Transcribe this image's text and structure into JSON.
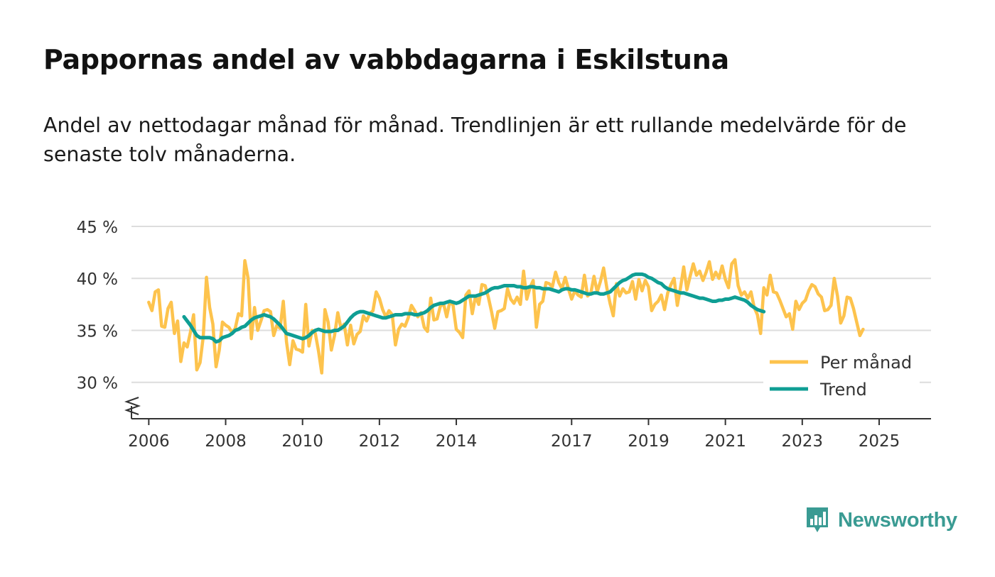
{
  "title": "Pappornas andel av vabbdagarna i Eskilstuna",
  "subtitle": "Andel av nettodagar månad för månad. Trendlinjen är ett rullande medelvärde för de senaste tolv månaderna.",
  "brand": {
    "name": "Newsworthy",
    "icon": "newsworthy-logo-icon",
    "color": "#3a9b93"
  },
  "colors": {
    "monthly": "#fdc34d",
    "trend": "#0f9e94",
    "grid": "#dddddd",
    "axis": "#333333"
  },
  "chart_data": {
    "type": "line",
    "title": "Pappornas andel av vabbdagarna i Eskilstuna",
    "xlabel": "",
    "ylabel": "",
    "x_unit": "year (decimal)",
    "xlim": [
      2005.55,
      2026.35
    ],
    "ylim": [
      26.5,
      45
    ],
    "y_ticks": [
      30,
      35,
      40,
      45
    ],
    "y_tick_labels": [
      "30 %",
      "35 %",
      "40 %",
      "45 %"
    ],
    "x_ticks": [
      2006,
      2008,
      2010,
      2012,
      2014,
      2017,
      2019,
      2021,
      2023,
      2025
    ],
    "x_tick_labels": [
      "2006",
      "2008",
      "2010",
      "2012",
      "2014",
      "2017",
      "2019",
      "2021",
      "2023",
      "2025"
    ],
    "legend": {
      "position": "bottom-right",
      "entries": [
        "Per månad",
        "Trend"
      ]
    },
    "series": [
      {
        "name": "Per månad",
        "key": "monthly",
        "x_start": 2006.0,
        "x_step": 0.08333,
        "values": [
          37.7,
          36.9,
          38.7,
          38.9,
          35.4,
          35.3,
          37.1,
          37.7,
          34.7,
          35.9,
          32.0,
          33.8,
          33.4,
          34.8,
          36.5,
          31.2,
          31.9,
          34.4,
          40.1,
          37.2,
          35.6,
          31.5,
          33.1,
          35.8,
          35.5,
          35.3,
          34.8,
          35.2,
          36.6,
          36.4,
          41.7,
          40.0,
          34.2,
          37.2,
          35.0,
          35.9,
          36.9,
          37.0,
          36.8,
          34.5,
          35.5,
          35.2,
          37.8,
          33.9,
          31.7,
          34.0,
          33.2,
          33.1,
          32.9,
          37.5,
          33.5,
          35.0,
          34.7,
          33.0,
          30.9,
          37.0,
          35.8,
          33.1,
          34.5,
          36.7,
          35.2,
          35.6,
          33.6,
          35.5,
          33.7,
          34.6,
          34.9,
          36.4,
          35.9,
          36.6,
          36.9,
          38.7,
          38.1,
          37.0,
          36.3,
          36.9,
          36.5,
          33.6,
          35.1,
          35.6,
          35.4,
          36.2,
          37.4,
          36.9,
          36.3,
          36.7,
          35.3,
          34.9,
          38.1,
          36.0,
          36.1,
          37.3,
          37.6,
          36.3,
          37.8,
          37.4,
          35.1,
          34.8,
          34.3,
          38.4,
          38.8,
          36.6,
          38.3,
          37.5,
          39.4,
          39.3,
          38.2,
          36.8,
          35.2,
          36.8,
          36.9,
          37.1,
          39.0,
          38.0,
          37.6,
          38.2,
          37.5,
          40.7,
          38.0,
          39.1,
          39.8,
          35.3,
          37.5,
          37.8,
          39.6,
          39.5,
          39.2,
          40.6,
          39.6,
          39.0,
          40.1,
          39.0,
          38.0,
          38.8,
          38.4,
          38.2,
          40.3,
          38.3,
          38.6,
          40.2,
          38.7,
          39.7,
          41.0,
          39.1,
          37.6,
          36.4,
          39.5,
          38.3,
          39.0,
          38.6,
          38.7,
          39.7,
          38.0,
          39.9,
          38.8,
          39.8,
          39.2,
          36.9,
          37.5,
          37.8,
          38.4,
          37.0,
          38.6,
          39.4,
          40.0,
          37.4,
          39.1,
          41.1,
          38.9,
          40.2,
          41.4,
          40.3,
          40.7,
          39.8,
          40.6,
          41.6,
          39.9,
          40.6,
          40.0,
          41.2,
          39.9,
          39.1,
          41.4,
          41.8,
          39.3,
          38.4,
          38.7,
          38.1,
          38.7,
          37.2,
          36.5,
          34.7,
          39.1,
          38.4,
          40.3,
          38.7,
          38.6,
          37.9,
          37.1,
          36.3,
          36.6,
          35.1,
          37.8,
          37.0,
          37.6,
          37.9,
          38.8,
          39.4,
          39.2,
          38.5,
          38.2,
          36.9,
          37.0,
          37.4,
          40.0,
          38.3,
          35.7,
          36.4,
          38.2,
          38.1,
          37.1,
          35.8,
          34.5,
          35.1
        ]
      },
      {
        "name": "Trend",
        "key": "trend",
        "x_start": 2006.9167,
        "x_step": 0.08333,
        "values": [
          36.3,
          35.9,
          35.5,
          35.0,
          34.5,
          34.3,
          34.3,
          34.3,
          34.3,
          34.2,
          33.9,
          34.0,
          34.3,
          34.4,
          34.5,
          34.7,
          35.0,
          35.1,
          35.3,
          35.4,
          35.7,
          36.0,
          36.2,
          36.3,
          36.4,
          36.5,
          36.4,
          36.3,
          36.1,
          35.8,
          35.5,
          35.1,
          34.7,
          34.6,
          34.5,
          34.4,
          34.3,
          34.2,
          34.3,
          34.5,
          34.8,
          35.0,
          35.1,
          35.0,
          34.9,
          34.9,
          34.9,
          35.0,
          35.0,
          35.2,
          35.4,
          35.8,
          36.2,
          36.5,
          36.7,
          36.8,
          36.8,
          36.7,
          36.6,
          36.5,
          36.4,
          36.3,
          36.2,
          36.2,
          36.3,
          36.4,
          36.5,
          36.5,
          36.5,
          36.6,
          36.6,
          36.6,
          36.5,
          36.5,
          36.6,
          36.7,
          36.9,
          37.2,
          37.4,
          37.5,
          37.6,
          37.6,
          37.7,
          37.8,
          37.7,
          37.6,
          37.7,
          37.9,
          38.1,
          38.3,
          38.3,
          38.3,
          38.4,
          38.5,
          38.6,
          38.8,
          39.0,
          39.1,
          39.1,
          39.2,
          39.3,
          39.3,
          39.3,
          39.3,
          39.2,
          39.2,
          39.1,
          39.1,
          39.2,
          39.2,
          39.1,
          39.1,
          39.0,
          39.0,
          39.0,
          38.9,
          38.8,
          38.7,
          38.9,
          39.0,
          39.0,
          38.9,
          38.9,
          38.8,
          38.7,
          38.6,
          38.5,
          38.5,
          38.6,
          38.6,
          38.5,
          38.5,
          38.6,
          38.7,
          39.0,
          39.3,
          39.6,
          39.8,
          39.9,
          40.1,
          40.3,
          40.4,
          40.4,
          40.4,
          40.3,
          40.1,
          40.0,
          39.8,
          39.6,
          39.5,
          39.2,
          39.0,
          38.9,
          38.8,
          38.7,
          38.6,
          38.6,
          38.5,
          38.4,
          38.3,
          38.2,
          38.1,
          38.1,
          38.0,
          37.9,
          37.8,
          37.8,
          37.9,
          37.9,
          38.0,
          38.0,
          38.1,
          38.2,
          38.1,
          38.0,
          37.9,
          37.7,
          37.4,
          37.2,
          37.0,
          36.9,
          36.8
        ]
      }
    ]
  }
}
